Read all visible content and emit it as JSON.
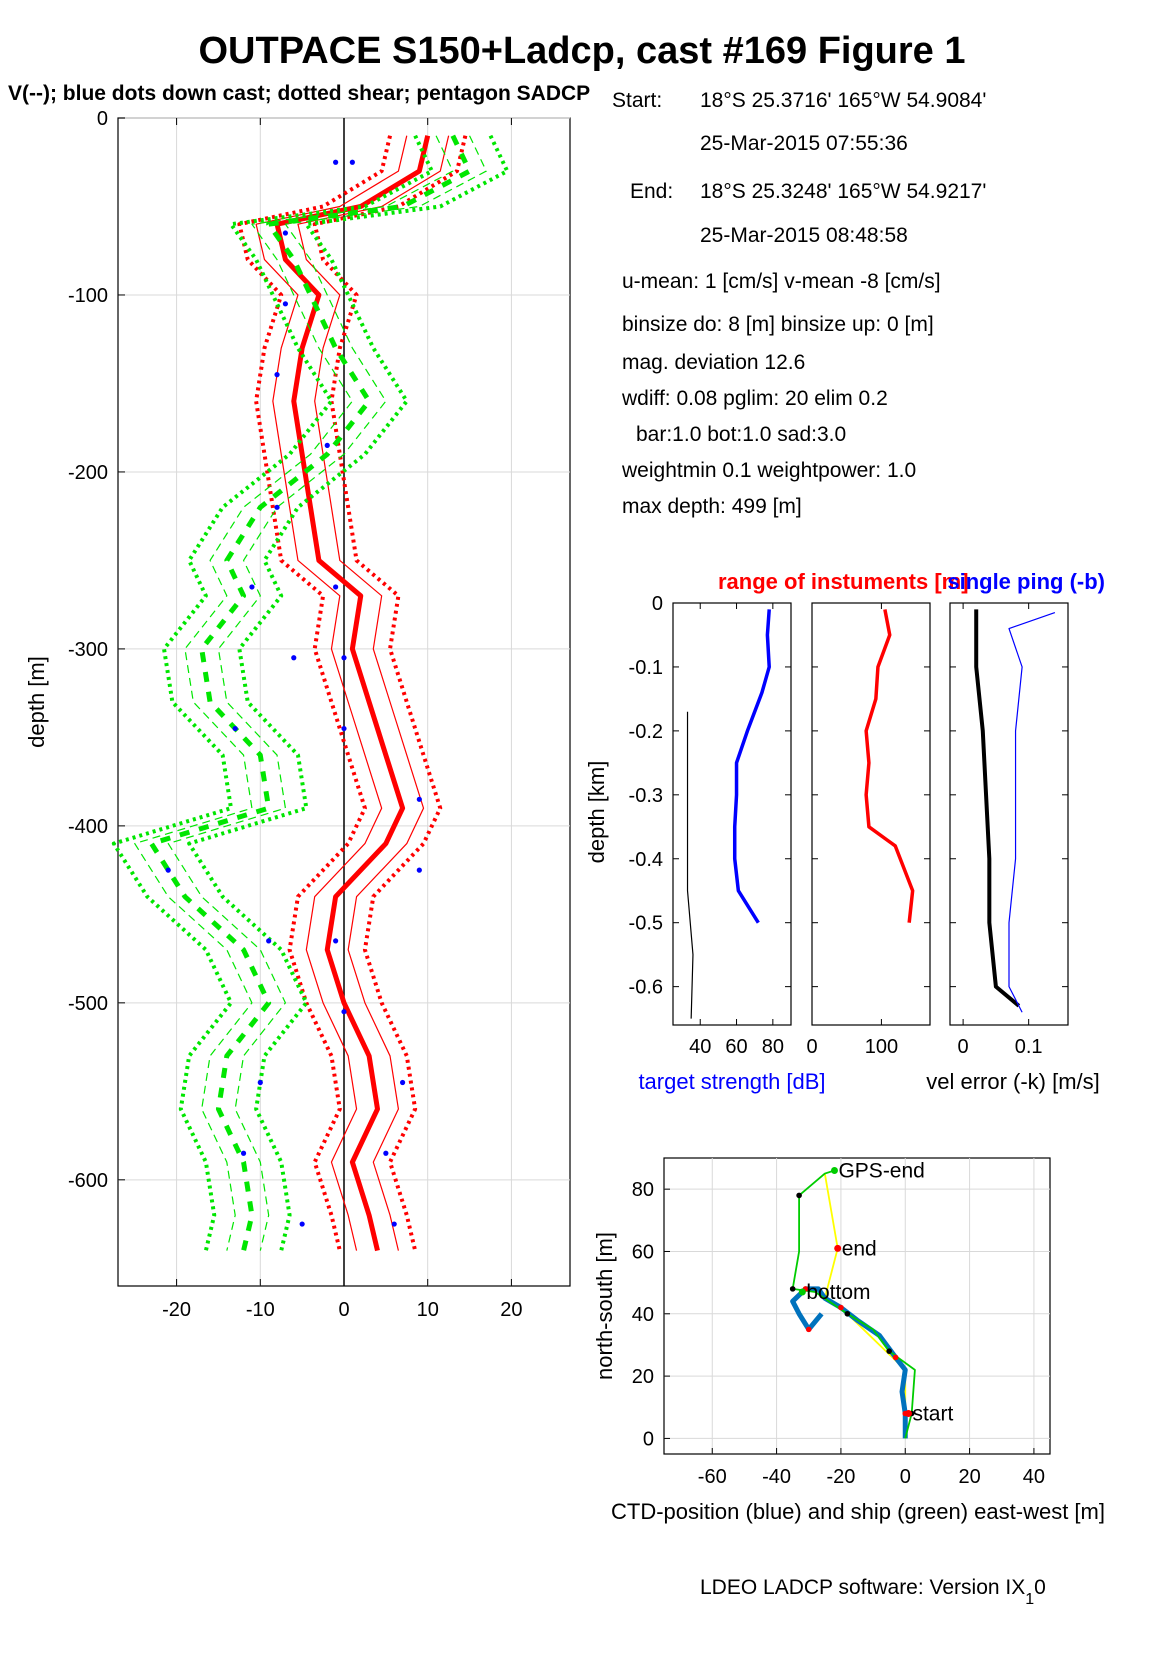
{
  "figure": {
    "title": "OUTPACE S150+Ladcp, cast #169  Figure 1",
    "subtitle": "V(--); blue dots down cast; dotted shear; pentagon SADCP",
    "footer": "LDEO LADCP software: Version IX",
    "footer_sub": "1",
    "footer_tail": "0"
  },
  "info": {
    "start_label": "Start:",
    "start_pos": "18°S 25.3716'     165°W 54.9084'",
    "start_time": "25-Mar-2015 07:55:36",
    "end_label": "End:",
    "end_pos": "18°S 25.3248'     165°W 54.9217'",
    "end_time": "25-Mar-2015 08:48:58",
    "mean": "u-mean:   1 [cm/s]    v-mean  -8 [cm/s]",
    "binsize": "binsize do: 8 [m]  binsize up:  0 [m]",
    "magdev": "mag. deviation 12.6",
    "wdiff": "wdiff: 0.08  pglim: 20  elim 0.2",
    "bar": "bar:1.0 bot:1.0 sad:3.0",
    "weight": "weightmin 0.1  weightpower: 1.0",
    "maxdepth": "max depth: 499 [m]"
  },
  "colors": {
    "u": "#ff0000",
    "v": "#00e600",
    "dots": "#0000ff",
    "ts": "#0000ff",
    "range": "#ff0000",
    "velerr": "#000000",
    "ship": "#00cc00",
    "ctd": "#0072bd",
    "track": "#ffff00"
  },
  "chart_data": [
    {
      "type": "line",
      "id": "profile",
      "ylabel": "depth [m]",
      "xlim": [
        -27,
        27
      ],
      "ylim": [
        -660,
        0
      ],
      "xticks": [
        -20,
        -10,
        0,
        10,
        20
      ],
      "yticks": [
        0,
        -100,
        -200,
        -300,
        -400,
        -500,
        -600
      ],
      "grid": true,
      "series": [
        {
          "id": "u",
          "depth": [
            -10,
            -30,
            -50,
            -60,
            -80,
            -100,
            -130,
            -160,
            -190,
            -220,
            -250,
            -270,
            -300,
            -330,
            -360,
            -390,
            -410,
            -440,
            -470,
            -500,
            -530,
            -560,
            -590,
            -620,
            -640
          ],
          "values": [
            10,
            9,
            2,
            -8,
            -7,
            -3,
            -5,
            -6,
            -5,
            -4,
            -3,
            2,
            1,
            3,
            5,
            7,
            5,
            -1,
            -2,
            0,
            3,
            4,
            1,
            3,
            4
          ]
        },
        {
          "id": "v",
          "depth": [
            -10,
            -30,
            -50,
            -60,
            -80,
            -100,
            -130,
            -160,
            -190,
            -220,
            -250,
            -270,
            -300,
            -330,
            -360,
            -390,
            -410,
            -440,
            -470,
            -500,
            -530,
            -560,
            -590,
            -620,
            -640
          ],
          "values": [
            13,
            15,
            7,
            -9,
            -6,
            -4,
            -1,
            3,
            -2,
            -10,
            -14,
            -12,
            -17,
            -16,
            -10,
            -9,
            -23,
            -19,
            -12,
            -9,
            -14,
            -15,
            -12,
            -11,
            -12
          ]
        },
        {
          "id": "dots",
          "points": [
            [
              -1,
              -25
            ],
            [
              1,
              -25
            ],
            [
              -7,
              -65
            ],
            [
              -7,
              -105
            ],
            [
              -8,
              -145
            ],
            [
              -2,
              -185
            ],
            [
              -8,
              -220
            ],
            [
              -11,
              -265
            ],
            [
              -1,
              -265
            ],
            [
              -6,
              -305
            ],
            [
              0,
              -305
            ],
            [
              -13,
              -345
            ],
            [
              0,
              -345
            ],
            [
              9,
              -385
            ],
            [
              -21,
              -425
            ],
            [
              9,
              -425
            ],
            [
              -9,
              -465
            ],
            [
              -1,
              -465
            ],
            [
              0,
              -505
            ],
            [
              -10,
              -545
            ],
            [
              7,
              -545
            ],
            [
              -12,
              -585
            ],
            [
              5,
              -585
            ],
            [
              -5,
              -625
            ],
            [
              6,
              -625
            ]
          ]
        }
      ]
    },
    {
      "type": "line",
      "id": "target_strength",
      "title": "range of instuments [m]",
      "ylabel": "depth [km]",
      "xlabel": "target strength [dB]",
      "xlim": [
        25,
        90
      ],
      "ylim": [
        -0.66,
        0
      ],
      "xticks": [
        40,
        60,
        80
      ],
      "yticks": [
        0,
        -0.1,
        -0.2,
        -0.3,
        -0.4,
        -0.5,
        -0.6
      ],
      "series": [
        {
          "id": "ts",
          "depth": [
            -0.01,
            -0.05,
            -0.1,
            -0.14,
            -0.2,
            -0.25,
            -0.3,
            -0.35,
            -0.4,
            -0.45,
            -0.5
          ],
          "values": [
            78,
            77,
            78,
            74,
            66,
            60,
            60,
            59,
            59,
            61,
            72
          ]
        },
        {
          "id": "ts_black",
          "depth": [
            -0.17,
            -0.25,
            -0.35,
            -0.45,
            -0.55,
            -0.65
          ],
          "values": [
            33,
            33,
            33,
            33,
            36,
            35
          ]
        }
      ]
    },
    {
      "type": "line",
      "id": "range",
      "xlim": [
        0,
        170
      ],
      "ylim": [
        -0.66,
        0
      ],
      "xticks": [
        0,
        100
      ],
      "series": [
        {
          "id": "range",
          "depth": [
            -0.01,
            -0.05,
            -0.1,
            -0.15,
            -0.2,
            -0.25,
            -0.3,
            -0.35,
            -0.38,
            -0.45,
            -0.5
          ],
          "values": [
            105,
            112,
            95,
            92,
            78,
            82,
            78,
            82,
            120,
            145,
            140
          ]
        }
      ]
    },
    {
      "type": "line",
      "id": "vel_error",
      "title": "single ping (-b)",
      "xlabel": "vel error (-k) [m/s]",
      "xlim": [
        -0.02,
        0.16
      ],
      "ylim": [
        -0.66,
        0
      ],
      "xticks": [
        0,
        0.1
      ],
      "series": [
        {
          "id": "velerr",
          "depth": [
            -0.01,
            -0.1,
            -0.2,
            -0.3,
            -0.4,
            -0.5,
            -0.6,
            -0.63
          ],
          "values": [
            0.02,
            0.02,
            0.03,
            0.035,
            0.04,
            0.04,
            0.05,
            0.085
          ]
        },
        {
          "id": "singleping",
          "depth": [
            -0.015,
            -0.04,
            -0.1,
            -0.2,
            -0.3,
            -0.4,
            -0.5,
            -0.6,
            -0.64
          ],
          "values": [
            0.14,
            0.07,
            0.09,
            0.08,
            0.08,
            0.08,
            0.07,
            0.07,
            0.09
          ]
        }
      ]
    },
    {
      "type": "line",
      "id": "position",
      "xlabel": "CTD-position (blue) and ship (green) east-west [m]",
      "ylabel": "north-south [m]",
      "xlim": [
        -75,
        45
      ],
      "ylim": [
        -5,
        90
      ],
      "xticks": [
        -60,
        -40,
        -20,
        0,
        20,
        40
      ],
      "yticks": [
        0,
        20,
        40,
        60,
        80
      ],
      "labels": [
        {
          "text": "GPS-end",
          "x": -22,
          "y": 86
        },
        {
          "text": "end",
          "x": -21,
          "y": 61
        },
        {
          "text": "bottom",
          "x": -32,
          "y": 47
        },
        {
          "text": "start",
          "x": 1,
          "y": 8
        }
      ],
      "series": [
        {
          "id": "ctd",
          "points": [
            [
              0,
              0
            ],
            [
              0,
              8
            ],
            [
              -1,
              15
            ],
            [
              0,
              22
            ],
            [
              -3,
              26
            ],
            [
              -8,
              33
            ],
            [
              -15,
              38
            ],
            [
              -20,
              42
            ],
            [
              -25,
              45
            ],
            [
              -27,
              48
            ],
            [
              -31,
              48
            ],
            [
              -35,
              44
            ],
            [
              -33,
              40
            ],
            [
              -30,
              35
            ],
            [
              -26,
              40
            ]
          ]
        },
        {
          "id": "ship",
          "points": [
            [
              0,
              0
            ],
            [
              2,
              8
            ],
            [
              3,
              22
            ],
            [
              -5,
              28
            ],
            [
              -10,
              35
            ],
            [
              -18,
              40
            ],
            [
              -28,
              47
            ],
            [
              -35,
              48
            ],
            [
              -33,
              60
            ],
            [
              -33,
              78
            ],
            [
              -25,
              85
            ],
            [
              -22,
              86
            ]
          ]
        },
        {
          "id": "track",
          "points": [
            [
              0,
              0
            ],
            [
              0,
              22
            ],
            [
              -20,
              42
            ],
            [
              -25,
              45
            ],
            [
              -21,
              61
            ],
            [
              -25,
              85
            ]
          ]
        }
      ]
    }
  ]
}
